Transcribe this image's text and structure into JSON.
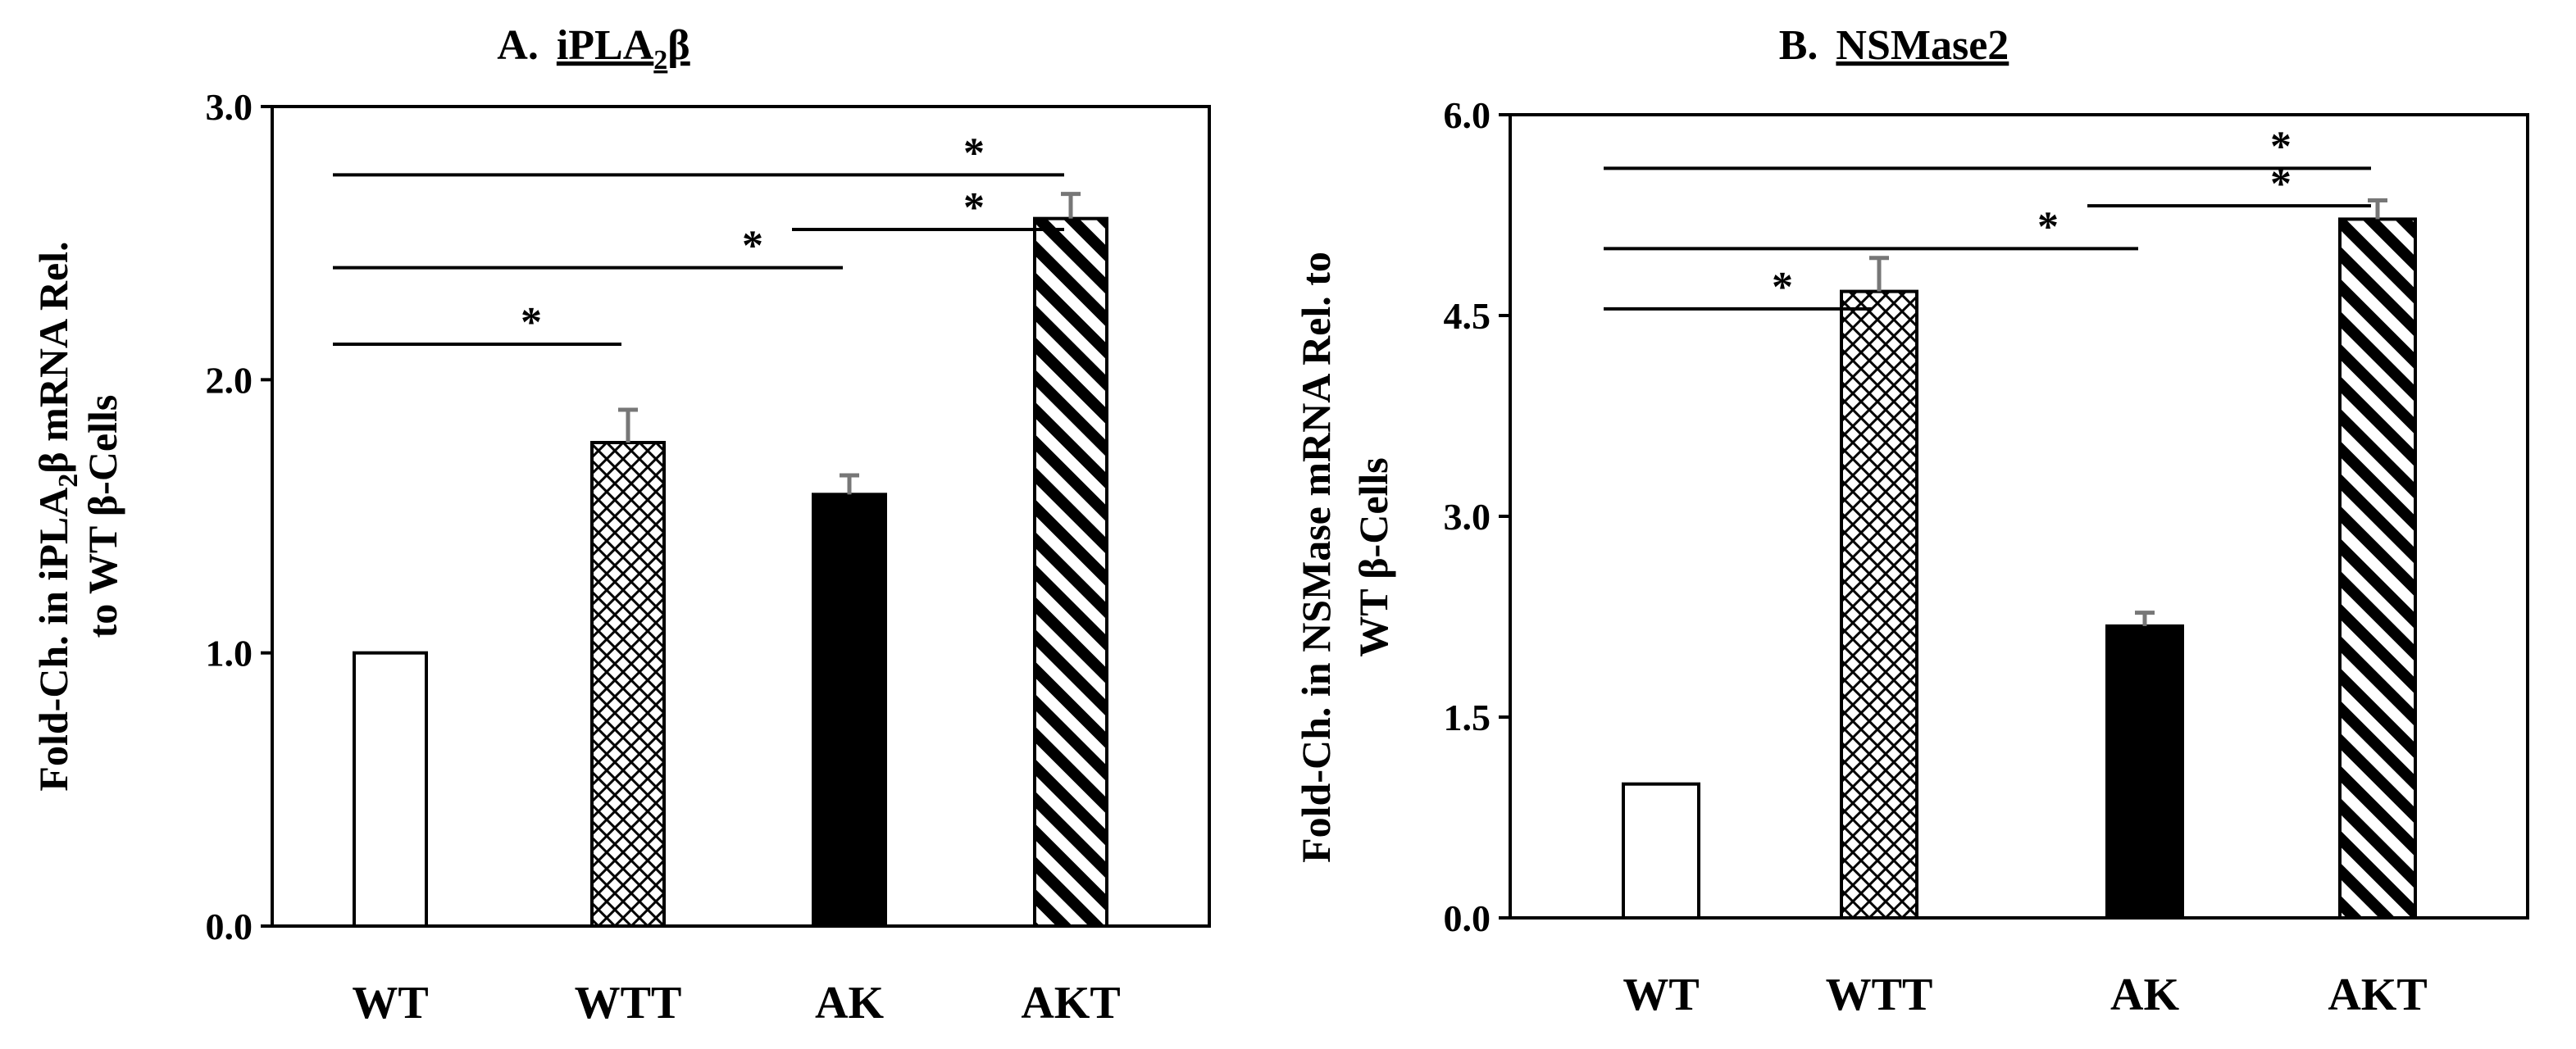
{
  "chart_data": [
    {
      "type": "bar",
      "title_prefix": "A.",
      "title_name": "iPLA",
      "title_sub": "2",
      "title_suffix": "β",
      "categories": [
        "WT",
        "WTT",
        "AK",
        "AKT"
      ],
      "values": [
        1.0,
        1.77,
        1.58,
        2.59
      ],
      "errors": [
        0.0,
        0.12,
        0.07,
        0.09
      ],
      "patterns": [
        "white",
        "crosshatch",
        "solid-black",
        "diagonal"
      ],
      "ylim": [
        0,
        3
      ],
      "yticks": [
        "0.0",
        "1.0",
        "2.0",
        "3.0"
      ],
      "ylabel_line1_a": "Fold-Ch. in  iPLA",
      "ylabel_line1_sub": "2",
      "ylabel_line1_b": "β mRNA Rel.",
      "ylabel_line2": "to WT β-Cells",
      "significance": [
        {
          "from": "WT",
          "to": "AKT",
          "level": 2.75,
          "label": "*"
        },
        {
          "from": "AK",
          "to": "AKT",
          "level": 2.55,
          "label": "*"
        },
        {
          "from": "WT",
          "to": "AK",
          "level": 2.41,
          "label": "*"
        },
        {
          "from": "WT",
          "to": "WTT",
          "level": 2.13,
          "label": "*"
        }
      ]
    },
    {
      "type": "bar",
      "title_prefix": "B.",
      "title_name": "NSMase2",
      "categories": [
        "WT",
        "WTT",
        "AK",
        "AKT"
      ],
      "values": [
        1.0,
        4.68,
        2.18,
        5.22
      ],
      "errors": [
        0.0,
        0.25,
        0.1,
        0.14
      ],
      "patterns": [
        "white",
        "crosshatch",
        "solid-black",
        "diagonal"
      ],
      "ylim": [
        0,
        6
      ],
      "yticks": [
        "0.0",
        "1.5",
        "3.0",
        "4.5",
        "6.0"
      ],
      "ylabel_line1": "Fold-Ch. in NSMase mRNA Rel. to",
      "ylabel_line2": "WT β-Cells",
      "significance": [
        {
          "from": "WT",
          "to": "AKT",
          "level": 5.6,
          "label": "*"
        },
        {
          "from": "AK",
          "to": "AKT",
          "level": 5.32,
          "label": "*"
        },
        {
          "from": "WT",
          "to": "AK",
          "level": 5.0,
          "label": "*"
        },
        {
          "from": "WT",
          "to": "WTT",
          "level": 4.55,
          "label": "*"
        }
      ]
    }
  ]
}
